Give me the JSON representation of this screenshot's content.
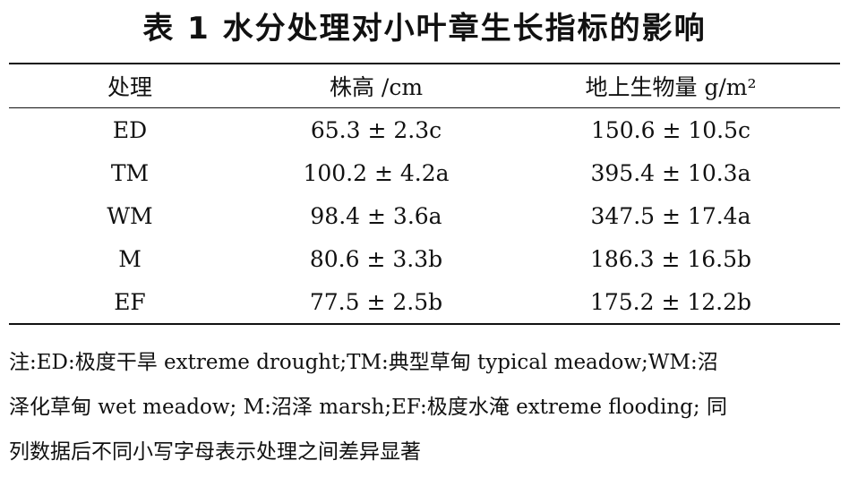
{
  "title": "表 1   水分处理对小叶章生长指标的影响",
  "table": {
    "headers": [
      "处理",
      "株高 /cm",
      "地上生物量 g/m²"
    ],
    "rows": [
      [
        "ED",
        "65.3 ± 2.3c",
        "150.6 ± 10.5c"
      ],
      [
        "TM",
        "100.2 ± 4.2a",
        "395.4 ± 10.3a"
      ],
      [
        "WM",
        "98.4 ± 3.6a",
        "347.5 ± 17.4a"
      ],
      [
        "M",
        "80.6 ± 3.3b",
        "186.3 ± 16.5b"
      ],
      [
        "EF",
        "77.5 ± 2.5b",
        "175.2 ± 12.2b"
      ]
    ]
  },
  "note": {
    "lines": [
      "注:ED:极度干旱 extreme drought;TM:典型草甸 typical meadow;WM:沼",
      "泽化草甸 wet meadow; M:沼泽 marsh;EF:极度水淹 extreme flooding; 同",
      "列数据后不同小写字母表示处理之间差异显著"
    ]
  }
}
